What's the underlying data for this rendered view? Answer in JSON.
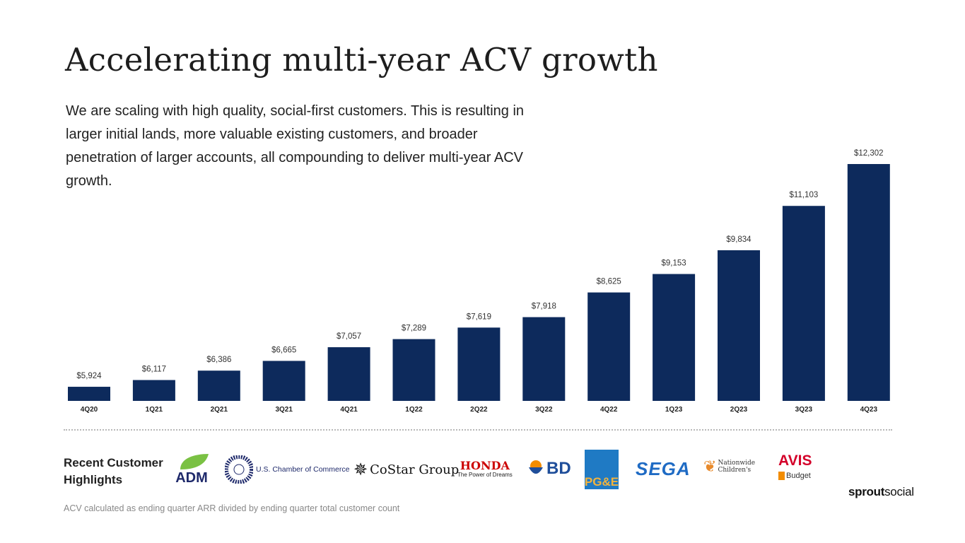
{
  "title": "Accelerating multi-year ACV growth",
  "subtitle": "We are scaling with high quality, social-first customers. This is resulting in larger initial lands, more valuable existing customers, and broader penetration of larger accounts, all compounding to deliver multi-year ACV growth.",
  "chart_data": {
    "type": "bar",
    "categories": [
      "4Q20",
      "1Q21",
      "2Q21",
      "3Q21",
      "4Q21",
      "1Q22",
      "2Q22",
      "3Q22",
      "4Q22",
      "1Q23",
      "2Q23",
      "3Q23",
      "4Q23"
    ],
    "values": [
      5924,
      6117,
      6386,
      6665,
      7057,
      7289,
      7619,
      7918,
      8625,
      9153,
      9834,
      11103,
      12302
    ],
    "data_labels": [
      "$5,924",
      "$6,117",
      "$6,386",
      "$6,665",
      "$7,057",
      "$7,289",
      "$7,619",
      "$7,918",
      "$8,625",
      "$9,153",
      "$9,834",
      "$11,103",
      "$12,302"
    ],
    "title": "",
    "xlabel": "",
    "ylabel": "",
    "ylim": [
      5520,
      12302
    ],
    "grid": false,
    "bar_color": "#0d2a5c"
  },
  "highlights": {
    "label": "Recent Customer Highlights",
    "logos": [
      "ADM",
      "U.S. Chamber of Commerce",
      "CoStar Group",
      "HONDA",
      "The Power of Dreams",
      "BD",
      "PG&E",
      "SEGA",
      "Nationwide Children's",
      "AVIS",
      "Budget"
    ]
  },
  "footnote": "ACV calculated as ending quarter ARR divided by ending quarter total customer count",
  "brand": {
    "bold": "sprout",
    "light": "social"
  }
}
